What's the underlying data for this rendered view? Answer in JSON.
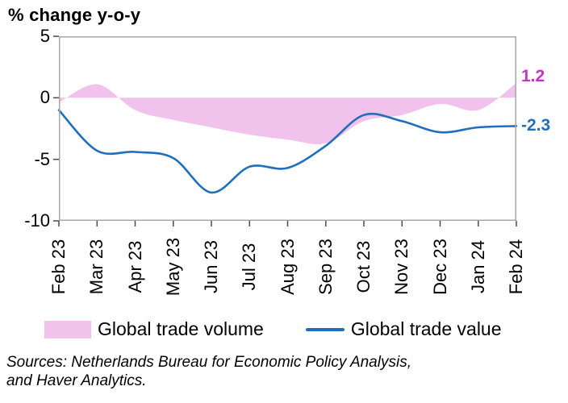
{
  "title": "% change y-o-y",
  "colors": {
    "border": "#a8a8a8",
    "tick": "#4a4a4a",
    "text": "#000000",
    "volume_fill": "#f1c2ec",
    "value_line": "#1f6fbe",
    "volume_label": "#c433c4"
  },
  "chart_data": {
    "type": "area+line",
    "title": "% change y-o-y",
    "categories": [
      "Feb 23",
      "Mar 23",
      "Apr 23",
      "May 23",
      "Jun 23",
      "Jul 23",
      "Aug 23",
      "Sep 23",
      "Oct 23",
      "Nov 23",
      "Dec 23",
      "Jan 24",
      "Feb 24"
    ],
    "series": [
      {
        "name": "Global trade volume",
        "type": "area",
        "color": "#f1c2ec",
        "baseline": 0,
        "values": [
          -0.4,
          1.1,
          -1.0,
          -1.8,
          -2.4,
          -3.0,
          -3.4,
          -3.7,
          -1.9,
          -1.4,
          -0.5,
          -1.0,
          1.2
        ]
      },
      {
        "name": "Global trade value",
        "type": "line",
        "color": "#1f6fbe",
        "values": [
          -1.0,
          -4.3,
          -4.4,
          -4.9,
          -7.7,
          -5.6,
          -5.7,
          -3.9,
          -1.4,
          -1.9,
          -2.8,
          -2.4,
          -2.3
        ]
      }
    ],
    "ylim": [
      -10,
      5
    ],
    "yticks": [
      5,
      0,
      -5,
      -10
    ],
    "grid": false,
    "legend_position": "bottom",
    "end_labels": [
      {
        "series": "Global trade volume",
        "text": "1.2",
        "color": "#c433c4"
      },
      {
        "series": "Global trade value",
        "text": "-2.3",
        "color": "#1f6fbe"
      }
    ]
  },
  "legend": [
    {
      "label": "Global trade volume",
      "swatch": "area"
    },
    {
      "label": "Global trade value",
      "swatch": "line"
    }
  ],
  "source_line1": "Sources: Netherlands Bureau for Economic Policy Analysis,",
  "source_line2": "and Haver Analytics."
}
